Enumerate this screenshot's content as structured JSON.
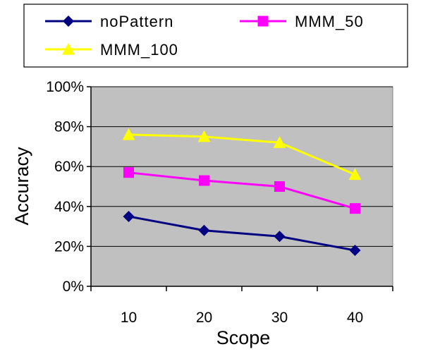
{
  "chart_data": {
    "type": "line",
    "title": "",
    "xlabel": "Scope",
    "ylabel": "Accuracy",
    "categories": [
      "10",
      "20",
      "30",
      "40"
    ],
    "ylim": [
      0,
      100
    ],
    "y_ticks": [
      "0%",
      "20%",
      "40%",
      "60%",
      "80%",
      "100%"
    ],
    "y_tick_values": [
      0,
      20,
      40,
      60,
      80,
      100
    ],
    "grid": true,
    "plot_background": "#C0C0C0",
    "legend_placement": "top",
    "series": [
      {
        "name": "noPattern",
        "values": [
          35,
          28,
          25,
          18
        ],
        "color": "#000080",
        "marker": "diamond"
      },
      {
        "name": "MMM_50",
        "values": [
          57,
          53,
          50,
          39
        ],
        "color": "#FF00FF",
        "marker": "square"
      },
      {
        "name": "MMM_100",
        "values": [
          76,
          75,
          72,
          56
        ],
        "color": "#FFFF00",
        "marker": "triangle"
      }
    ]
  }
}
